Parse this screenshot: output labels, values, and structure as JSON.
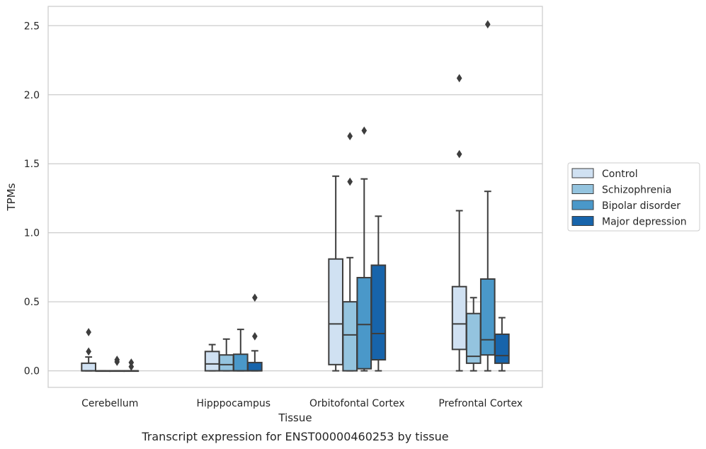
{
  "chart_data": {
    "type": "box",
    "xlabel": "Tissue",
    "ylabel": "TPMs",
    "caption": "Transcript expression for ENST00000460253 by tissue",
    "ylim": [
      -0.12,
      2.64
    ],
    "yticks": [
      "0.0",
      "0.5",
      "1.0",
      "1.5",
      "2.0",
      "2.5"
    ],
    "grid": "horizontal",
    "legend_position": "right",
    "categories": [
      "Cerebellum",
      "Hipppocampus",
      "Orbitofontal Cortex",
      "Prefrontal Cortex"
    ],
    "series": [
      {
        "name": "Control",
        "color": "#d0e1f2",
        "boxes": [
          {
            "whislo": 0.0,
            "q1": 0.0,
            "med": 0.0,
            "q3": 0.055,
            "whishi": 0.1,
            "fliers": [
              0.14,
              0.28
            ]
          },
          {
            "whislo": 0.0,
            "q1": 0.0,
            "med": 0.05,
            "q3": 0.14,
            "whishi": 0.19,
            "fliers": []
          },
          {
            "whislo": 0.0,
            "q1": 0.045,
            "med": 0.34,
            "q3": 0.81,
            "whishi": 1.41,
            "fliers": []
          },
          {
            "whislo": 0.0,
            "q1": 0.155,
            "med": 0.34,
            "q3": 0.61,
            "whishi": 1.16,
            "fliers": [
              1.57,
              2.12
            ]
          }
        ]
      },
      {
        "name": "Schizophrenia",
        "color": "#94c4df",
        "boxes": [
          {
            "whislo": 0.0,
            "q1": 0.0,
            "med": 0.0,
            "q3": 0.0,
            "whishi": 0.0,
            "fliers": []
          },
          {
            "whislo": 0.0,
            "q1": 0.0,
            "med": 0.045,
            "q3": 0.115,
            "whishi": 0.23,
            "fliers": []
          },
          {
            "whislo": 0.0,
            "q1": 0.0,
            "med": 0.26,
            "q3": 0.5,
            "whishi": 0.82,
            "fliers": [
              1.37,
              1.7
            ]
          },
          {
            "whislo": 0.0,
            "q1": 0.055,
            "med": 0.105,
            "q3": 0.415,
            "whishi": 0.53,
            "fliers": []
          }
        ]
      },
      {
        "name": "Bipolar disorder",
        "color": "#4a98c9",
        "boxes": [
          {
            "whislo": 0.0,
            "q1": 0.0,
            "med": 0.0,
            "q3": 0.0,
            "whishi": 0.0,
            "fliers": [
              0.065,
              0.08
            ]
          },
          {
            "whislo": 0.0,
            "q1": 0.0,
            "med": 0.0,
            "q3": 0.12,
            "whishi": 0.3,
            "fliers": []
          },
          {
            "whislo": 0.0,
            "q1": 0.015,
            "med": 0.335,
            "q3": 0.675,
            "whishi": 1.39,
            "fliers": [
              1.74
            ]
          },
          {
            "whislo": 0.0,
            "q1": 0.115,
            "med": 0.225,
            "q3": 0.665,
            "whishi": 1.3,
            "fliers": [
              2.51
            ]
          }
        ]
      },
      {
        "name": "Major depression",
        "color": "#1764ab",
        "boxes": [
          {
            "whislo": 0.0,
            "q1": 0.0,
            "med": 0.0,
            "q3": 0.0,
            "whishi": 0.0,
            "fliers": [
              0.03,
              0.06
            ]
          },
          {
            "whislo": 0.0,
            "q1": 0.0,
            "med": 0.0,
            "q3": 0.06,
            "whishi": 0.145,
            "fliers": [
              0.25,
              0.53
            ]
          },
          {
            "whislo": 0.0,
            "q1": 0.08,
            "med": 0.27,
            "q3": 0.765,
            "whishi": 1.12,
            "fliers": []
          },
          {
            "whislo": 0.0,
            "q1": 0.055,
            "med": 0.11,
            "q3": 0.265,
            "whishi": 0.385,
            "fliers": []
          }
        ]
      }
    ]
  }
}
